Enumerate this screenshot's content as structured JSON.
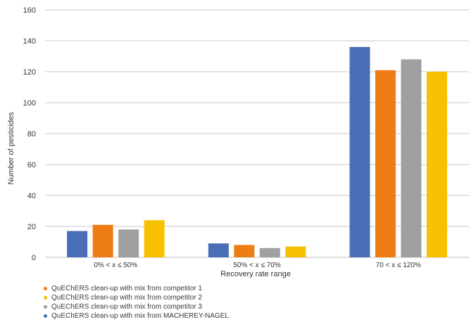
{
  "chart_data": {
    "type": "bar",
    "title": "",
    "xlabel": "Recovery rate range",
    "ylabel": "Number of pesticides",
    "categories": [
      "0% < x ≤ 50%",
      "50% < x ≤ 70%",
      "70 < x ≤ 120%"
    ],
    "ylim": [
      0,
      160
    ],
    "yticks": [
      "0",
      "20",
      "40",
      "60",
      "80",
      "100",
      "120",
      "140",
      "160"
    ],
    "grid": true,
    "legend_position": "bottom-left",
    "series": [
      {
        "name": "QuEChERS clean-up with mix from MACHEREY-NAGEL",
        "color": "#4a6eb5",
        "values": [
          17,
          9,
          136
        ]
      },
      {
        "name": "QuEChERS clean-up with mix from competitor 1",
        "color": "#ef7d16",
        "values": [
          21,
          8,
          121
        ]
      },
      {
        "name": "QuEChERS clean-up with mix from competitor 3",
        "color": "#a0a0a0",
        "values": [
          18,
          6,
          128
        ]
      },
      {
        "name": "QuEChERS clean-up with mix from competitor 2",
        "color": "#f7c000",
        "values": [
          24,
          7,
          120
        ]
      }
    ],
    "legend_order": [
      1,
      3,
      2,
      0
    ]
  }
}
